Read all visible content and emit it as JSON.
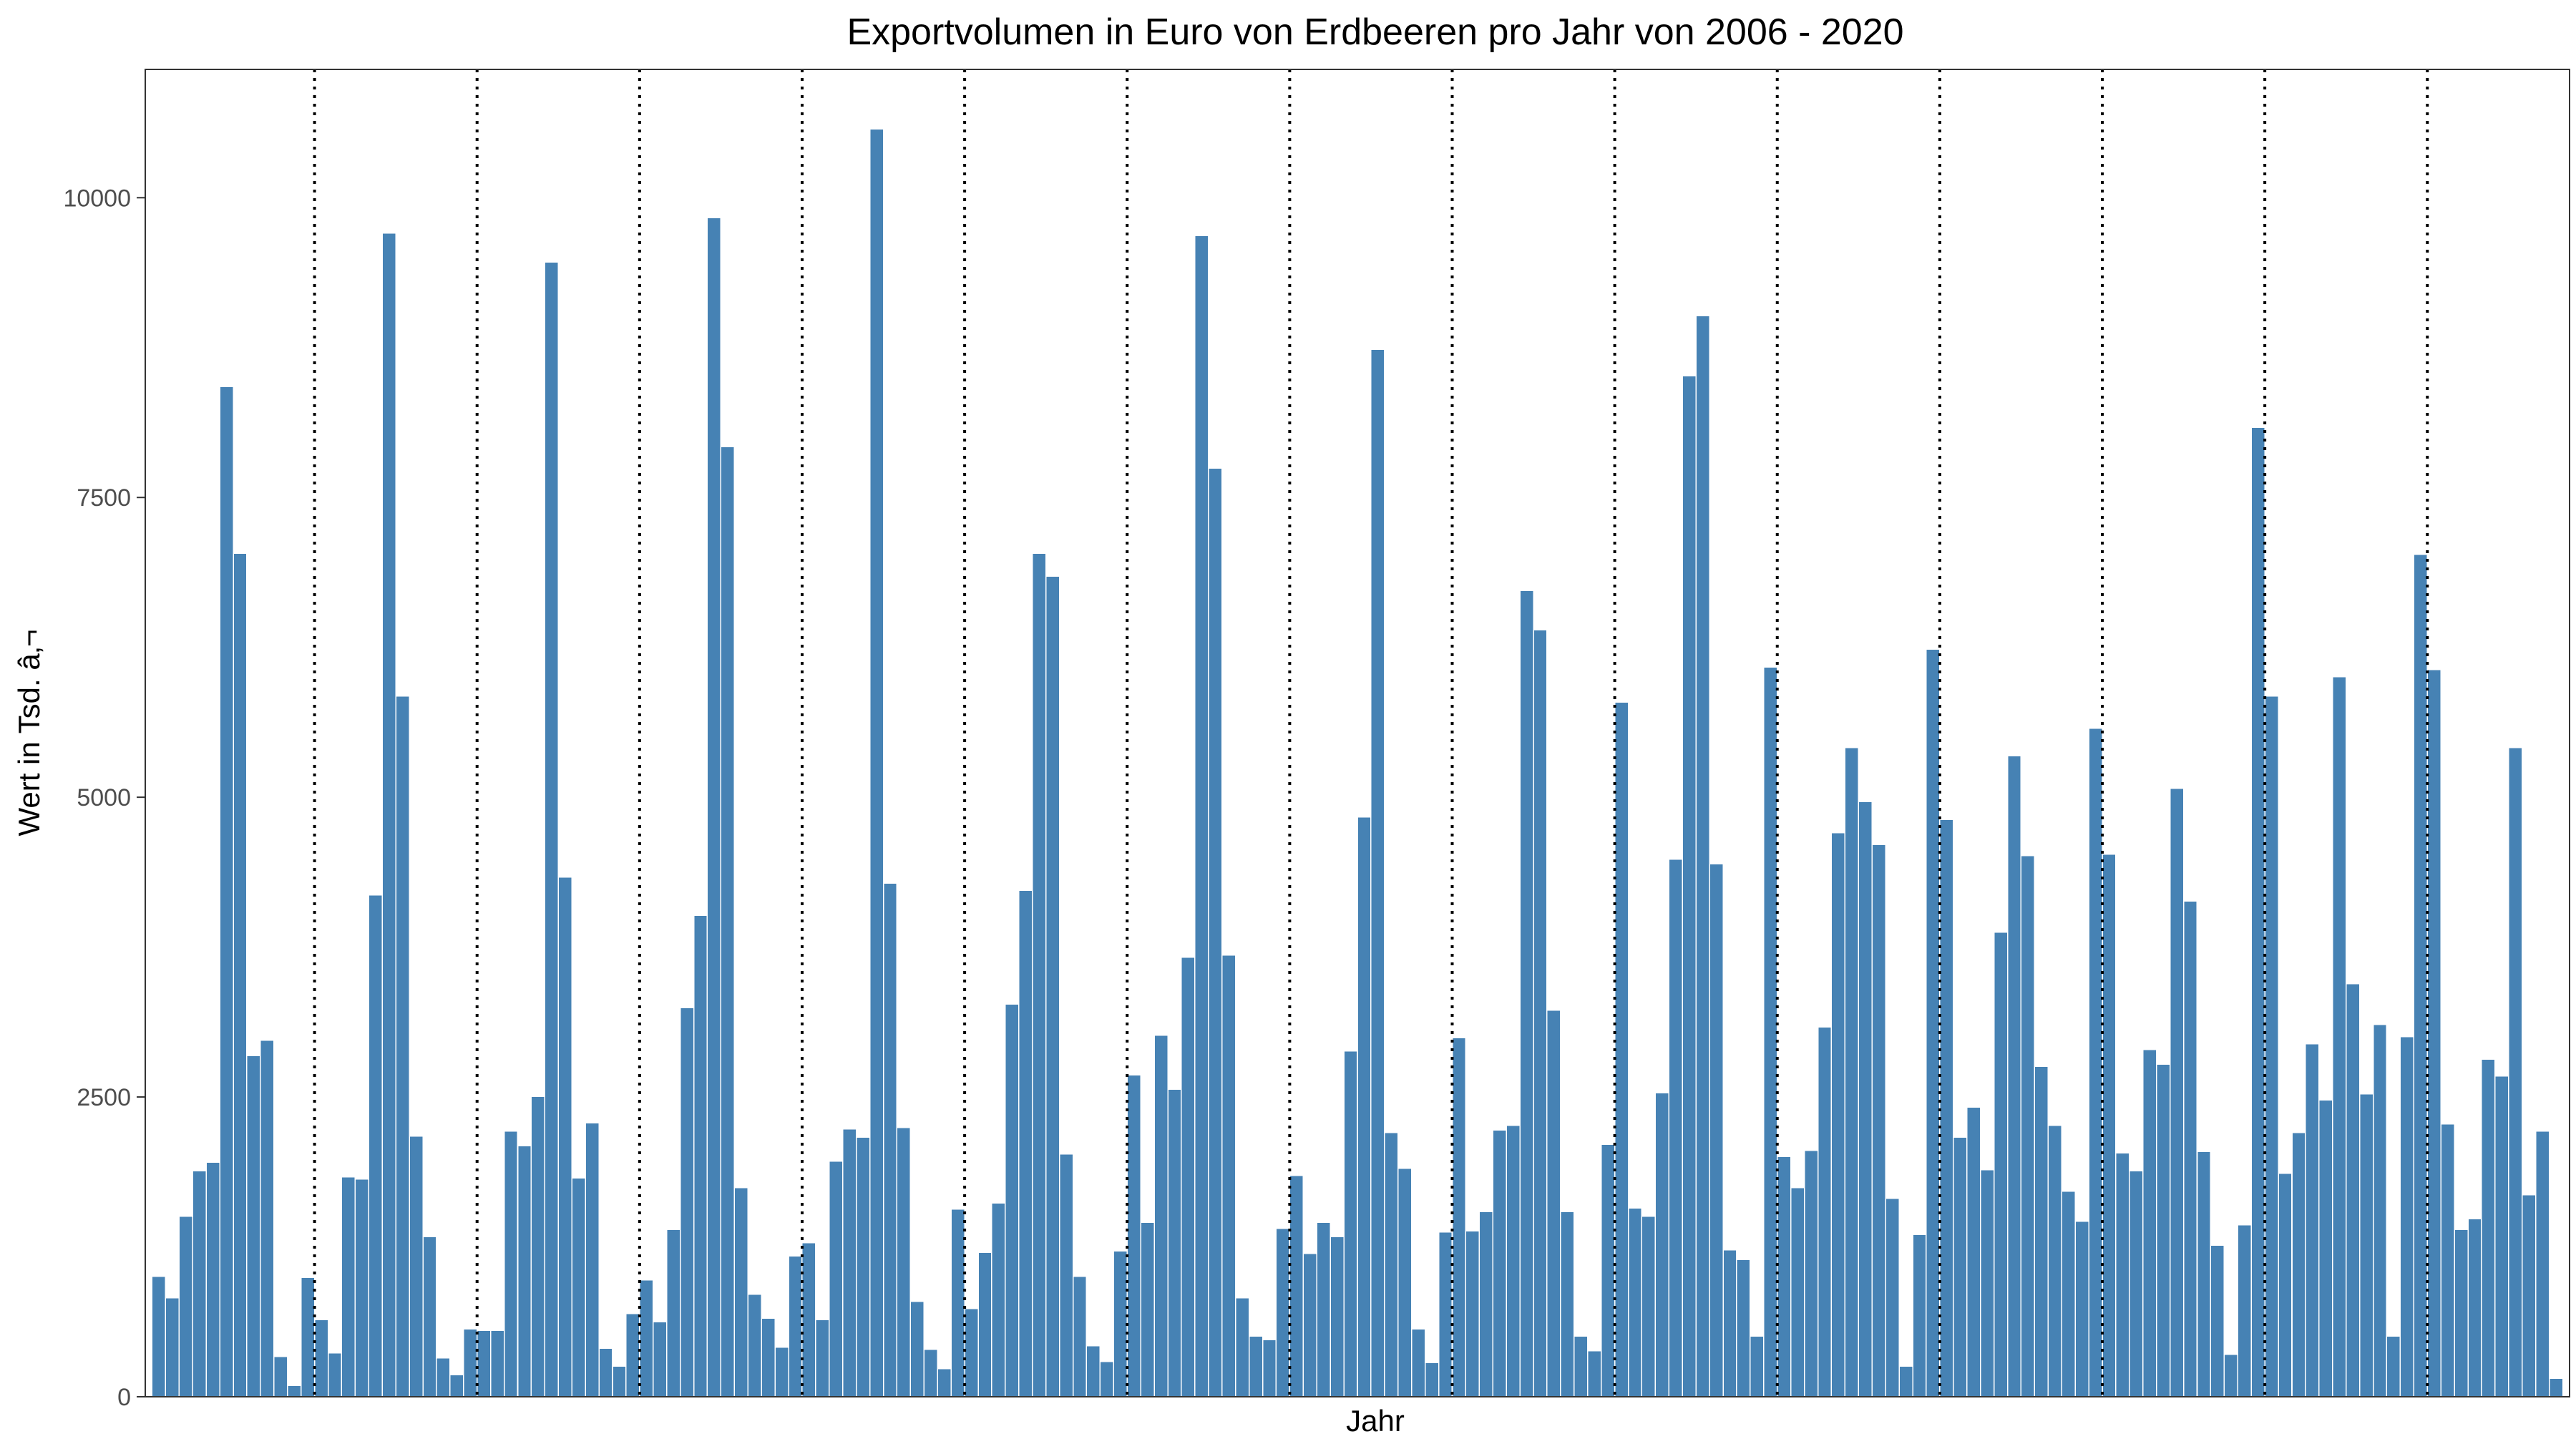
{
  "chart_data": {
    "type": "bar",
    "title": "Exportvolumen in Euro von Erdbeeren pro Jahr von 2006 - 2020",
    "xlabel": "Jahr",
    "ylabel": "Wert in Tsd. â‚¬",
    "ylim": [
      0,
      11070
    ],
    "yticks": [
      0,
      2500,
      5000,
      7500,
      10000
    ],
    "bar_color": "#4682b4",
    "separator_style": "dotted",
    "grid": false,
    "values": [
      1000,
      820,
      1500,
      1880,
      1950,
      8420,
      7030,
      2840,
      2970,
      330,
      90,
      990,
      640,
      360,
      1830,
      1810,
      4180,
      9700,
      5840,
      2170,
      1330,
      320,
      180,
      560,
      550,
      550,
      2210,
      2090,
      2500,
      9460,
      4330,
      1820,
      2280,
      400,
      250,
      690,
      970,
      620,
      1390,
      3240,
      4010,
      9830,
      7920,
      1740,
      850,
      650,
      410,
      1170,
      1280,
      640,
      1960,
      2230,
      2160,
      10570,
      4280,
      2240,
      790,
      390,
      230,
      1560,
      730,
      1200,
      1610,
      3270,
      4220,
      7030,
      6840,
      2020,
      1000,
      420,
      290,
      1210,
      2680,
      1450,
      3010,
      2560,
      3660,
      9680,
      7740,
      3680,
      820,
      500,
      470,
      1400,
      1840,
      1190,
      1450,
      1330,
      2880,
      4830,
      8730,
      2200,
      1900,
      560,
      280,
      1370,
      2990,
      1380,
      1540,
      2220,
      2260,
      6720,
      6390,
      3220,
      1540,
      500,
      380,
      2100,
      5790,
      1570,
      1500,
      2530,
      4480,
      8510,
      9010,
      4440,
      1220,
      1140,
      500,
      6080,
      2000,
      1740,
      2050,
      3080,
      4700,
      5410,
      4960,
      4600,
      1650,
      250,
      1350,
      6230,
      4810,
      2160,
      2410,
      1890,
      3870,
      5340,
      4510,
      2750,
      2260,
      1710,
      1460,
      5570,
      4520,
      2030,
      1880,
      2890,
      2770,
      5070,
      4130,
      2040,
      1260,
      350,
      1430,
      8080,
      5840,
      1860,
      2200,
      2940,
      2470,
      6000,
      3440,
      2520,
      3100,
      500,
      3000,
      7020,
      6060,
      2270,
      1390,
      1480,
      2810,
      2670,
      5410,
      1680,
      2210,
      150
    ]
  }
}
